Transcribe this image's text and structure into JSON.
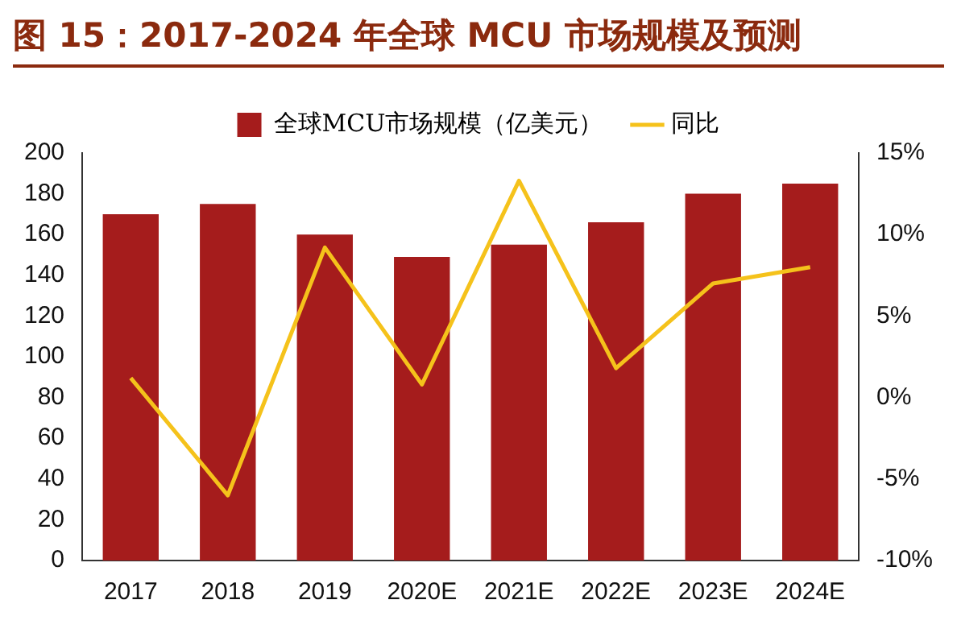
{
  "chart_data": {
    "type": "bar",
    "title": "图 15：2017-2024 年全球 MCU 市场规模及预测",
    "categories": [
      "2017",
      "2018",
      "2019",
      "2020E",
      "2021E",
      "2022E",
      "2023E",
      "2024E"
    ],
    "series": [
      {
        "name": "全球MCU市场规模（亿美元）",
        "color": "#a51c1c",
        "values": [
          170,
          175,
          160,
          149,
          155,
          166,
          180,
          185
        ]
      },
      {
        "name": "同比",
        "type": "line",
        "axis": "y2",
        "color": "#f5c21b",
        "values": [
          1.2,
          -6,
          9.2,
          0.8,
          13.3,
          1.8,
          7,
          8
        ]
      }
    ],
    "ylim": [
      0,
      200
    ],
    "yticks": [
      0,
      20,
      40,
      60,
      80,
      100,
      120,
      140,
      160,
      180,
      200
    ],
    "y2lim": [
      -10,
      15
    ],
    "y2ticks": [
      {
        "value": -10,
        "label": "-10%"
      },
      {
        "value": -5,
        "label": "-5%"
      },
      {
        "value": 0,
        "label": "0%"
      },
      {
        "value": 5,
        "label": "5%"
      },
      {
        "value": 10,
        "label": "10%"
      },
      {
        "value": 15,
        "label": "15%"
      }
    ],
    "grid": false,
    "legend": "top",
    "marker": "none"
  }
}
